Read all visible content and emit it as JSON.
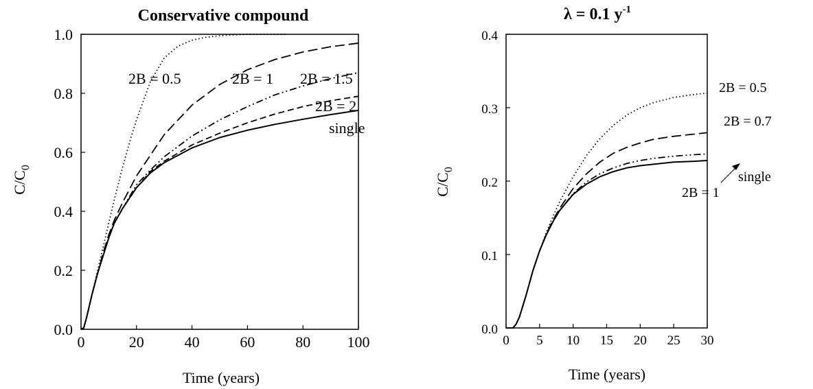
{
  "chart_data": [
    {
      "type": "line",
      "title": "Conservative compound",
      "xlabel": "Time (years)",
      "ylabel": "C/C",
      "ylabel_sub": "0",
      "xlim": [
        0,
        100
      ],
      "ylim": [
        0,
        1.0
      ],
      "xticks": [
        "0",
        "20",
        "40",
        "60",
        "80",
        "100"
      ],
      "yticks": [
        "0.0",
        "0.2",
        "0.4",
        "0.6",
        "0.8",
        "1.0"
      ],
      "series": [
        {
          "name": "2B = 0.5",
          "style": "dotted",
          "x": [
            0,
            1,
            2,
            4,
            6,
            8,
            10,
            12,
            15,
            18,
            20,
            25,
            30,
            35,
            40,
            45,
            50,
            55,
            60,
            74
          ],
          "y": [
            0,
            0.005,
            0.04,
            0.12,
            0.2,
            0.28,
            0.36,
            0.44,
            0.55,
            0.65,
            0.71,
            0.84,
            0.92,
            0.96,
            0.98,
            0.99,
            0.995,
            0.998,
            1.0,
            1.0
          ]
        },
        {
          "name": "2B = 1",
          "style": "long-dash",
          "x": [
            0,
            1,
            2,
            4,
            6,
            8,
            10,
            12,
            15,
            20,
            25,
            30,
            40,
            50,
            60,
            70,
            80,
            90,
            100
          ],
          "y": [
            0,
            0.005,
            0.04,
            0.12,
            0.19,
            0.26,
            0.32,
            0.37,
            0.43,
            0.52,
            0.59,
            0.66,
            0.76,
            0.83,
            0.88,
            0.915,
            0.94,
            0.958,
            0.97
          ]
        },
        {
          "name": "2B = 1.5",
          "style": "dash-dot-dot",
          "x": [
            0,
            1,
            2,
            4,
            6,
            8,
            10,
            12,
            15,
            20,
            25,
            30,
            40,
            50,
            60,
            70,
            80,
            90,
            100
          ],
          "y": [
            0,
            0.005,
            0.04,
            0.12,
            0.19,
            0.25,
            0.31,
            0.36,
            0.41,
            0.49,
            0.54,
            0.585,
            0.655,
            0.71,
            0.755,
            0.795,
            0.825,
            0.85,
            0.87
          ]
        },
        {
          "name": "2B = 2",
          "style": "medium-dash",
          "x": [
            0,
            1,
            2,
            4,
            6,
            8,
            10,
            12,
            15,
            20,
            25,
            30,
            40,
            50,
            60,
            70,
            80,
            90,
            100
          ],
          "y": [
            0,
            0.005,
            0.04,
            0.12,
            0.19,
            0.25,
            0.31,
            0.36,
            0.41,
            0.48,
            0.535,
            0.57,
            0.625,
            0.665,
            0.7,
            0.73,
            0.755,
            0.775,
            0.79
          ]
        },
        {
          "name": "single",
          "style": "solid",
          "x": [
            0,
            1,
            2,
            4,
            6,
            8,
            10,
            12,
            15,
            20,
            25,
            30,
            40,
            50,
            60,
            70,
            80,
            90,
            100
          ],
          "y": [
            0,
            0.005,
            0.04,
            0.12,
            0.19,
            0.25,
            0.31,
            0.36,
            0.41,
            0.48,
            0.53,
            0.565,
            0.615,
            0.65,
            0.675,
            0.695,
            0.712,
            0.728,
            0.742
          ]
        }
      ],
      "annotations": [
        "2B = 0.5",
        "2B = 1",
        "2B = 1.5",
        "2B = 2",
        "single"
      ]
    },
    {
      "type": "line",
      "title": "λ = 0.1 y",
      "title_sup": "-1",
      "xlabel": "Time (years)",
      "ylabel": "C/C",
      "ylabel_sub": "0",
      "xlim": [
        0,
        30
      ],
      "ylim": [
        0,
        0.4
      ],
      "xticks": [
        "0",
        "5",
        "10",
        "15",
        "20",
        "25",
        "30"
      ],
      "yticks": [
        "0.0",
        "0.1",
        "0.2",
        "0.3",
        "0.4"
      ],
      "series": [
        {
          "name": "2B = 0.5",
          "style": "dotted",
          "x": [
            0,
            1,
            1.5,
            2,
            3,
            4,
            5,
            6,
            7,
            8,
            10,
            12,
            14,
            16,
            18,
            20,
            22,
            25,
            28,
            30
          ],
          "y": [
            0,
            0.0,
            0.005,
            0.015,
            0.045,
            0.078,
            0.105,
            0.13,
            0.152,
            0.172,
            0.206,
            0.235,
            0.258,
            0.276,
            0.29,
            0.3,
            0.307,
            0.314,
            0.318,
            0.32
          ]
        },
        {
          "name": "2B = 0.7",
          "style": "long-dash",
          "x": [
            0,
            1,
            1.5,
            2,
            3,
            4,
            5,
            6,
            7,
            8,
            10,
            12,
            14,
            16,
            18,
            20,
            22,
            25,
            28,
            30
          ],
          "y": [
            0,
            0.0,
            0.005,
            0.015,
            0.045,
            0.078,
            0.105,
            0.128,
            0.147,
            0.163,
            0.19,
            0.21,
            0.226,
            0.238,
            0.246,
            0.252,
            0.257,
            0.261,
            0.264,
            0.266
          ]
        },
        {
          "name": "2B = 1",
          "style": "dash-dot-dot",
          "x": [
            0,
            1,
            1.5,
            2,
            3,
            4,
            5,
            6,
            7,
            8,
            10,
            12,
            14,
            16,
            18,
            20,
            22,
            25,
            28,
            30
          ],
          "y": [
            0,
            0.0,
            0.005,
            0.015,
            0.045,
            0.078,
            0.105,
            0.127,
            0.145,
            0.16,
            0.183,
            0.199,
            0.21,
            0.218,
            0.224,
            0.228,
            0.231,
            0.234,
            0.236,
            0.237
          ]
        },
        {
          "name": "single",
          "style": "solid",
          "x": [
            0,
            1,
            1.5,
            2,
            3,
            4,
            5,
            6,
            7,
            8,
            10,
            12,
            14,
            16,
            18,
            20,
            22,
            25,
            28,
            30
          ],
          "y": [
            0,
            0.0,
            0.005,
            0.015,
            0.045,
            0.078,
            0.105,
            0.127,
            0.145,
            0.16,
            0.182,
            0.196,
            0.206,
            0.213,
            0.218,
            0.221,
            0.223,
            0.226,
            0.227,
            0.228
          ]
        }
      ],
      "annotations": [
        "2B = 0.5",
        "2B = 0.7",
        "2B = 1",
        "single"
      ]
    }
  ]
}
